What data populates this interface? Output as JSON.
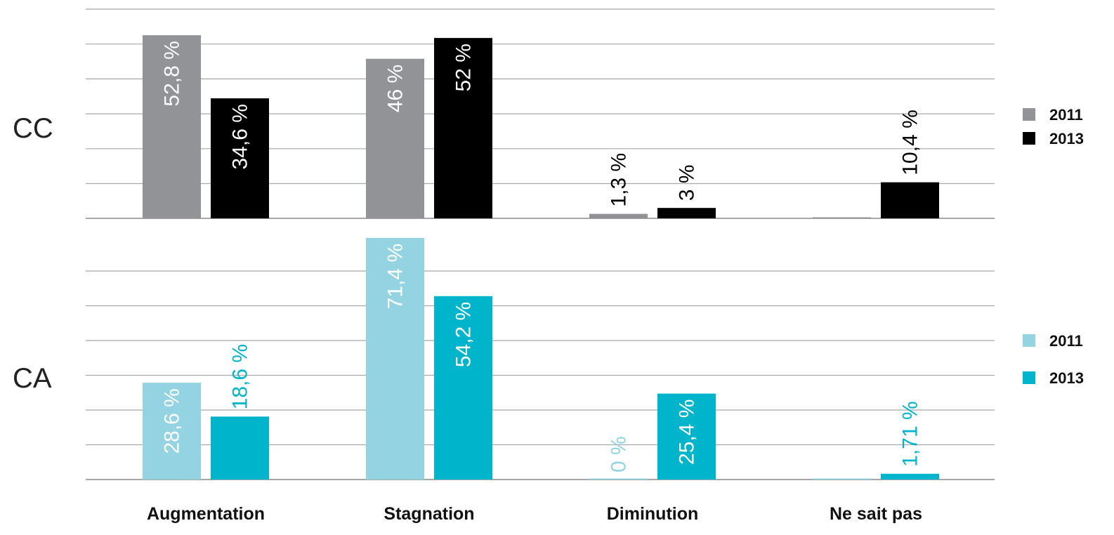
{
  "chart_data": [
    {
      "type": "bar",
      "panel_label": "CC",
      "categories": [
        "Augmentation",
        "Stagnation",
        "Diminution",
        "Ne sait pas"
      ],
      "series": [
        {
          "name": "2011",
          "color": "#929396",
          "values": [
            52.8,
            46,
            1.3,
            0
          ],
          "labels": [
            "52,8 %",
            "46 %",
            "1,3 %",
            ""
          ]
        },
        {
          "name": "2013",
          "color": "#000000",
          "values": [
            34.6,
            52,
            3,
            10.4
          ],
          "labels": [
            "34,6 %",
            "52 %",
            "3 %",
            "10,4 %"
          ]
        }
      ],
      "ylim": [
        0,
        60
      ],
      "grid": true,
      "legend_position": "right"
    },
    {
      "type": "bar",
      "panel_label": "CA",
      "categories": [
        "Augmentation",
        "Stagnation",
        "Diminution",
        "Ne sait pas"
      ],
      "series": [
        {
          "name": "2011",
          "color": "#94d3e1",
          "values": [
            28.6,
            71.4,
            0,
            0
          ],
          "labels": [
            "28,6 %",
            "71,4 %",
            "0 %",
            ""
          ]
        },
        {
          "name": "2013",
          "color": "#00b5cb",
          "values": [
            18.6,
            54.2,
            25.4,
            1.71
          ],
          "labels": [
            "18,6 %",
            "54,2 %",
            "25,4 %",
            "1,71 %"
          ]
        }
      ],
      "ylim": [
        0,
        105
      ],
      "grid": true,
      "legend_position": "right"
    }
  ],
  "x_categories": [
    "Augmentation",
    "Stagnation",
    "Diminution",
    "Ne sait pas"
  ]
}
